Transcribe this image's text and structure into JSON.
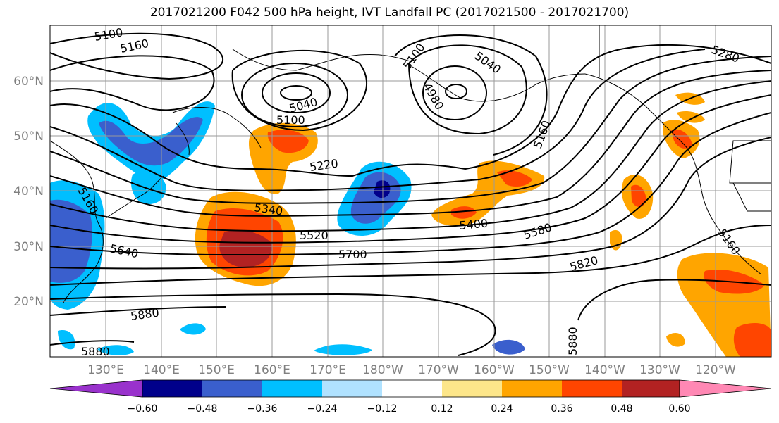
{
  "title": "2017021200 F042 500 hPa height, IVT Landfall PC (2017021500 - 2017021700)",
  "lat_labels": [
    "60°N",
    "50°N",
    "40°N",
    "30°N",
    "20°N"
  ],
  "lon_labels": [
    "130°E",
    "140°E",
    "150°E",
    "160°E",
    "170°E",
    "180°W",
    "170°W",
    "160°W",
    "150°W",
    "140°W",
    "130°W",
    "120°W"
  ],
  "contour_labels": [
    "5100",
    "5160",
    "5100",
    "5040",
    "5100",
    "5040",
    "4980",
    "5160",
    "5280",
    "5220",
    "5160",
    "5340",
    "5520",
    "5700",
    "5640",
    "5400",
    "5580",
    "5820",
    "5160",
    "5880",
    "5880",
    "5880"
  ],
  "colorbar": {
    "ticks": [
      "−0.60",
      "−0.48",
      "−0.36",
      "−0.24",
      "−0.12",
      "0.12",
      "0.24",
      "0.36",
      "0.48",
      "0.60"
    ],
    "colors": [
      "#9932cc",
      "#00008b",
      "#3a5fcd",
      "#00bfff",
      "#b0e2ff",
      "#ffffff",
      "#fde68a",
      "#ffa500",
      "#ff4500",
      "#b22222",
      "#ff88b4"
    ]
  }
}
